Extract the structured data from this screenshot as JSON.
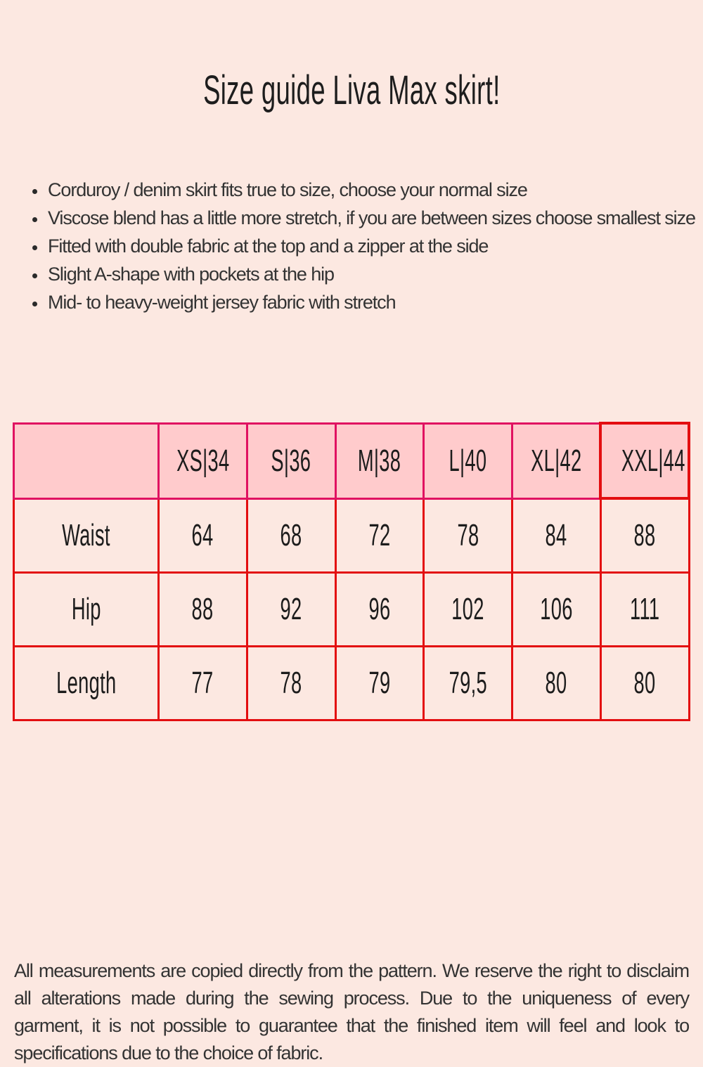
{
  "theme": {
    "page_bg": "#fce8e1"
  },
  "page": {
    "title": "Size guide Liva Max skirt!"
  },
  "bullets": [
    "Corduroy / denim skirt fits true to size, choose your normal size",
    "Viscose blend has a little more stretch, if you are between sizes choose smallest size",
    "Fitted with double fabric at the top and a zipper at the side",
    "Slight A-shape with pockets at the hip",
    "Mid- to heavy-weight jersey fabric with stretch"
  ],
  "size_table": {
    "columns": [
      "",
      "XS|34",
      "S|36",
      "M|38",
      "L|40",
      "XL|42",
      "XXL|44"
    ],
    "rows": [
      {
        "label": "Waist",
        "values": [
          "64",
          "68",
          "72",
          "78",
          "84",
          "88"
        ]
      },
      {
        "label": "Hip",
        "values": [
          "88",
          "92",
          "96",
          "102",
          "106",
          "111"
        ]
      },
      {
        "label": "Length",
        "values": [
          "77",
          "78",
          "79",
          "79,5",
          "80",
          "80"
        ]
      }
    ],
    "colors": {
      "header_bg": "#ffcbcc",
      "header_border": "#e01261",
      "body_border": "#e30e10"
    }
  },
  "footer": {
    "text": "All measurements are copied directly from the pattern. We reserve the right to disclaim all alterations made during the sewing process. Due to the uniqueness of every garment, it is not possible to guarantee that the finished item will feel and look to specifications due to the choice of fabric."
  }
}
